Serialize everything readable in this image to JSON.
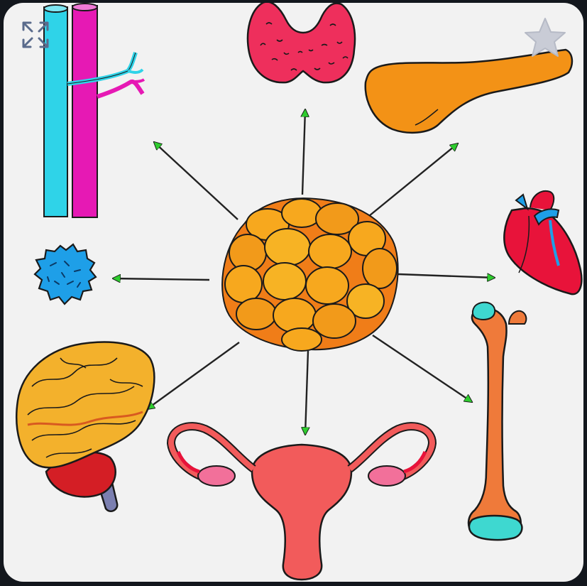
{
  "diagram": {
    "center": {
      "icon": "fat-cells-cluster-icon"
    },
    "targets": [
      {
        "icon": "thyroid-icon"
      },
      {
        "icon": "pancreas-icon"
      },
      {
        "icon": "heart-icon"
      },
      {
        "icon": "femur-bone-icon"
      },
      {
        "icon": "uterus-ovaries-icon"
      },
      {
        "icon": "brain-icon"
      },
      {
        "icon": "immune-cell-icon"
      },
      {
        "icon": "blood-vessels-icon"
      }
    ],
    "colors": {
      "arrow_head": "#2ecc2e",
      "arrow_line": "#222222",
      "background": "#f2f2f2",
      "vein": "#2fd3e8",
      "artery": "#e619b4",
      "thyroid": "#ee2f5c",
      "pancreas": "#f39216",
      "heart": "#e8133a",
      "bone": "#ef7a3a",
      "bone_ends": "#3ed8d0",
      "uterus": "#f25b5b",
      "brain": "#f3b12c",
      "cerebellum": "#d41e25",
      "immune_cell": "#1e9fe8",
      "fat_cells": "#f7a81e"
    }
  },
  "toolbar": {
    "expand_icon": "expand-arrows-icon",
    "favorite_icon": "star-icon"
  }
}
